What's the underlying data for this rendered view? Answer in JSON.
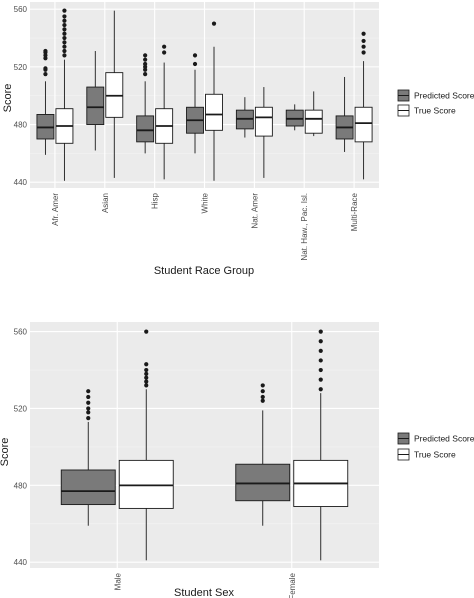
{
  "colors": {
    "panel": "#ebebeb",
    "grid_major": "#ffffff",
    "grid_minor": "#f4f4f4",
    "predicted_fill": "#7a7a7a",
    "true_fill": "#ffffff",
    "box_line": "#1a1a1a"
  },
  "chart_data": [
    {
      "type": "boxplot",
      "xlabel": "Student Race Group",
      "ylabel": "Score",
      "ylim": [
        436,
        565
      ],
      "yticks": [
        440,
        480,
        520,
        560
      ],
      "grid": true,
      "legend_position": "right",
      "legend": [
        {
          "name": "Predicted Score",
          "fill": "predicted"
        },
        {
          "name": "True Score",
          "fill": "true"
        }
      ],
      "categories": [
        "Afr. Amer",
        "Asian",
        "Hisp",
        "White",
        "Nat. Amer",
        "Nat. Haw., Pac. Isl.",
        "Multi-Race"
      ],
      "series": [
        {
          "name": "Predicted Score",
          "boxes": [
            {
              "whisker_low": 459,
              "q1": 470,
              "median": 478,
              "q3": 487,
              "whisker_high": 510,
              "outliers": [
                515,
                518,
                519,
                526,
                528,
                530,
                531
              ]
            },
            {
              "whisker_low": 462,
              "q1": 480,
              "median": 492,
              "q3": 506,
              "whisker_high": 531,
              "outliers": []
            },
            {
              "whisker_low": 460,
              "q1": 468,
              "median": 476,
              "q3": 486,
              "whisker_high": 510,
              "outliers": [
                515,
                518,
                520,
                522,
                525,
                528
              ]
            },
            {
              "whisker_low": 460,
              "q1": 474,
              "median": 483,
              "q3": 492,
              "whisker_high": 518,
              "outliers": [
                522,
                528
              ]
            },
            {
              "whisker_low": 471,
              "q1": 477,
              "median": 484,
              "q3": 490,
              "whisker_high": 499,
              "outliers": []
            },
            {
              "whisker_low": 476,
              "q1": 479,
              "median": 484,
              "q3": 490,
              "whisker_high": 494,
              "outliers": []
            },
            {
              "whisker_low": 461,
              "q1": 470,
              "median": 478,
              "q3": 486,
              "whisker_high": 513,
              "outliers": []
            }
          ]
        },
        {
          "name": "True Score",
          "boxes": [
            {
              "whisker_low": 441,
              "q1": 467,
              "median": 479,
              "q3": 491,
              "whisker_high": 525,
              "outliers": [
                528,
                531,
                534,
                537,
                540,
                543,
                546,
                549,
                552,
                555,
                559
              ]
            },
            {
              "whisker_low": 443,
              "q1": 485,
              "median": 500,
              "q3": 516,
              "whisker_high": 559,
              "outliers": []
            },
            {
              "whisker_low": 442,
              "q1": 467,
              "median": 479,
              "q3": 491,
              "whisker_high": 523,
              "outliers": [
                530,
                534
              ]
            },
            {
              "whisker_low": 441,
              "q1": 476,
              "median": 487,
              "q3": 501,
              "whisker_high": 534,
              "outliers": [
                550
              ]
            },
            {
              "whisker_low": 443,
              "q1": 472,
              "median": 485,
              "q3": 492,
              "whisker_high": 506,
              "outliers": []
            },
            {
              "whisker_low": 472,
              "q1": 474,
              "median": 484,
              "q3": 490,
              "whisker_high": 503,
              "outliers": []
            },
            {
              "whisker_low": 442,
              "q1": 468,
              "median": 481,
              "q3": 492,
              "whisker_high": 524,
              "outliers": [
                530,
                534,
                538,
                543
              ]
            }
          ]
        }
      ]
    },
    {
      "type": "boxplot",
      "xlabel": "Student Sex",
      "ylabel": "Score",
      "ylim": [
        437,
        565
      ],
      "yticks": [
        440,
        480,
        520,
        560
      ],
      "grid": true,
      "legend_position": "right",
      "legend": [
        {
          "name": "Predicted Score",
          "fill": "predicted"
        },
        {
          "name": "True Score",
          "fill": "true"
        }
      ],
      "categories": [
        "Male",
        "Female"
      ],
      "series": [
        {
          "name": "Predicted Score",
          "boxes": [
            {
              "whisker_low": 459,
              "q1": 470,
              "median": 477,
              "q3": 488,
              "whisker_high": 513,
              "outliers": [
                515,
                518,
                520,
                523,
                526,
                529
              ]
            },
            {
              "whisker_low": 459,
              "q1": 472,
              "median": 481,
              "q3": 491,
              "whisker_high": 519,
              "outliers": [
                524,
                526,
                529,
                532
              ]
            }
          ]
        },
        {
          "name": "True Score",
          "boxes": [
            {
              "whisker_low": 441,
              "q1": 468,
              "median": 480,
              "q3": 493,
              "whisker_high": 530,
              "outliers": [
                532,
                534,
                536,
                538,
                540,
                543,
                560
              ]
            },
            {
              "whisker_low": 441,
              "q1": 469,
              "median": 481,
              "q3": 493,
              "whisker_high": 528,
              "outliers": [
                530,
                535,
                540,
                545,
                550,
                555,
                560
              ]
            }
          ]
        }
      ]
    }
  ]
}
